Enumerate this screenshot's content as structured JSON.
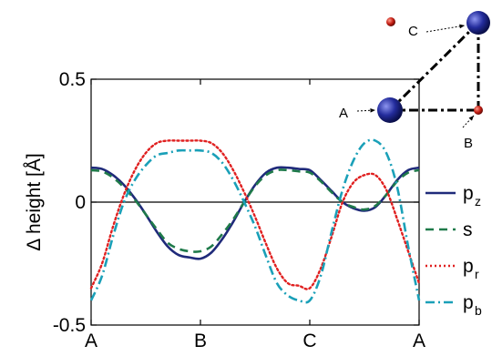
{
  "chart_data": {
    "type": "line",
    "xlabel": "",
    "ylabel": "Δ height [Å]",
    "ylim": [
      -0.5,
      0.5
    ],
    "xlim": [
      0,
      3
    ],
    "x_ticks": [
      {
        "value": 0,
        "label": "A"
      },
      {
        "value": 1,
        "label": "B"
      },
      {
        "value": 2,
        "label": "C"
      },
      {
        "value": 3,
        "label": "A"
      }
    ],
    "y_ticks": [
      {
        "value": 0.5,
        "label": "0.5"
      },
      {
        "value": 0,
        "label": "0"
      },
      {
        "value": -0.5,
        "label": "-0.5"
      }
    ],
    "zero_line": true,
    "legend_position": "right",
    "series": [
      {
        "name": "p",
        "name_sub": "z",
        "color": "#1f2a7a",
        "dash": "solid",
        "x": [
          0,
          0.1,
          0.2,
          0.3,
          0.4,
          0.5,
          0.6,
          0.7,
          0.8,
          0.9,
          1.0,
          1.1,
          1.2,
          1.3,
          1.4,
          1.5,
          1.6,
          1.7,
          1.8,
          1.9,
          2.0,
          2.1,
          2.2,
          2.3,
          2.4,
          2.5,
          2.6,
          2.7,
          2.8,
          2.9,
          3.0
        ],
        "y": [
          0.14,
          0.135,
          0.11,
          0.07,
          0.015,
          -0.05,
          -0.12,
          -0.18,
          -0.215,
          -0.225,
          -0.23,
          -0.205,
          -0.15,
          -0.08,
          0.0,
          0.07,
          0.12,
          0.14,
          0.14,
          0.135,
          0.13,
          0.09,
          0.045,
          0.0,
          -0.025,
          -0.035,
          -0.02,
          0.03,
          0.09,
          0.13,
          0.14
        ]
      },
      {
        "name": "s",
        "name_sub": "",
        "color": "#1f7a4a",
        "dash": "dashed",
        "x": [
          0,
          0.1,
          0.2,
          0.3,
          0.4,
          0.5,
          0.6,
          0.7,
          0.8,
          0.9,
          1.0,
          1.1,
          1.2,
          1.3,
          1.4,
          1.5,
          1.6,
          1.7,
          1.8,
          1.9,
          2.0,
          2.1,
          2.2,
          2.3,
          2.4,
          2.5,
          2.6,
          2.7,
          2.8,
          2.9,
          3.0
        ],
        "y": [
          0.13,
          0.125,
          0.1,
          0.06,
          0.01,
          -0.05,
          -0.11,
          -0.165,
          -0.19,
          -0.2,
          -0.2,
          -0.18,
          -0.13,
          -0.07,
          0.0,
          0.065,
          0.11,
          0.13,
          0.13,
          0.125,
          0.12,
          0.085,
          0.04,
          0.0,
          -0.02,
          -0.03,
          -0.015,
          0.03,
          0.085,
          0.12,
          0.13
        ]
      },
      {
        "name": "p",
        "name_sub": "r",
        "color": "#e02020",
        "dash": "dotted",
        "x": [
          0,
          0.1,
          0.2,
          0.3,
          0.4,
          0.5,
          0.6,
          0.7,
          0.8,
          0.9,
          1.0,
          1.1,
          1.2,
          1.3,
          1.4,
          1.5,
          1.6,
          1.7,
          1.8,
          1.9,
          2.0,
          2.1,
          2.2,
          2.3,
          2.4,
          2.5,
          2.6,
          2.7,
          2.8,
          2.9,
          3.0
        ],
        "y": [
          -0.35,
          -0.25,
          -0.1,
          0.03,
          0.13,
          0.2,
          0.24,
          0.25,
          0.25,
          0.25,
          0.25,
          0.24,
          0.2,
          0.13,
          0.04,
          -0.06,
          -0.17,
          -0.27,
          -0.33,
          -0.34,
          -0.35,
          -0.27,
          -0.14,
          0.0,
          0.08,
          0.11,
          0.11,
          0.05,
          -0.07,
          -0.2,
          -0.33
        ]
      },
      {
        "name": "p",
        "name_sub": "b",
        "color": "#1aa0b8",
        "dash": "dashdot",
        "x": [
          0,
          0.1,
          0.2,
          0.3,
          0.4,
          0.5,
          0.6,
          0.7,
          0.8,
          0.9,
          1.0,
          1.1,
          1.2,
          1.3,
          1.4,
          1.5,
          1.6,
          1.7,
          1.8,
          1.9,
          2.0,
          2.1,
          2.2,
          2.3,
          2.4,
          2.5,
          2.6,
          2.7,
          2.8,
          2.9,
          3.0
        ],
        "y": [
          -0.4,
          -0.3,
          -0.14,
          0.0,
          0.09,
          0.15,
          0.19,
          0.2,
          0.21,
          0.21,
          0.21,
          0.2,
          0.16,
          0.09,
          0.0,
          -0.1,
          -0.22,
          -0.33,
          -0.38,
          -0.4,
          -0.4,
          -0.3,
          -0.12,
          0.05,
          0.17,
          0.24,
          0.25,
          0.2,
          0.06,
          -0.18,
          -0.4
        ]
      }
    ],
    "inset": {
      "labels": [
        "A",
        "B",
        "C"
      ]
    }
  }
}
